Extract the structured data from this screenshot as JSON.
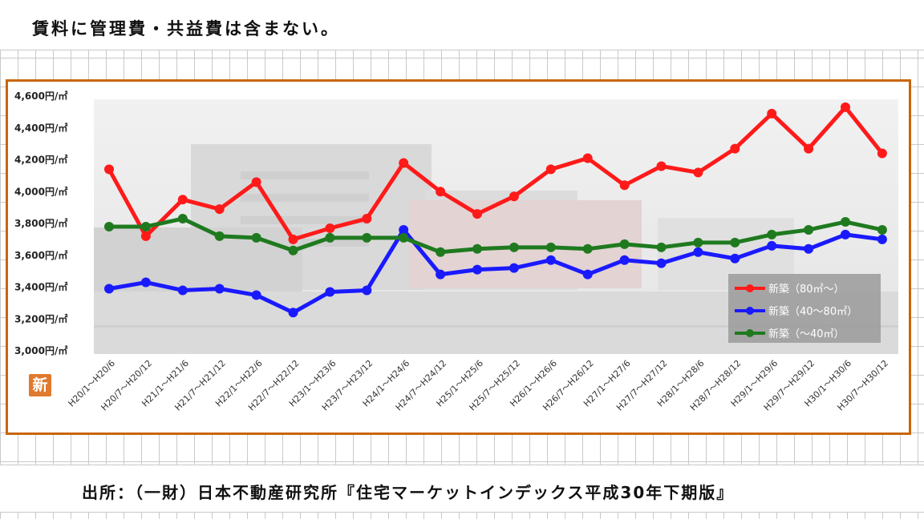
{
  "note": "賃料に管理費・共益費は含まない。",
  "source": "出所：（一財）日本不動産研究所『住宅マーケットインデックス平成30年下期版』",
  "badge": "新",
  "chart_data": {
    "type": "line",
    "categories": [
      "H20/1～H20/6",
      "H20/7～H20/12",
      "H21/1～H21/6",
      "H21/7～H21/12",
      "H22/1～H22/6",
      "H22/7～H22/12",
      "H23/1～H23/6",
      "H23/7～H23/12",
      "H24/1～H24/6",
      "H24/7～H24/12",
      "H25/1～H25/6",
      "H25/7～H25/12",
      "H26/1～H26/6",
      "H26/7～H26/12",
      "H27/1～H27/6",
      "H27/7～H27/12",
      "H28/1～H28/6",
      "H28/7～H28/12",
      "H29/1～H29/6",
      "H29/7～H29/12",
      "H30/1～H30/6",
      "H30/7～H30/12"
    ],
    "series": [
      {
        "name": "新築（80㎡～）",
        "color": "#ff1a1a",
        "values": [
          4140,
          3720,
          3950,
          3890,
          4060,
          3700,
          3770,
          3830,
          4180,
          4000,
          3860,
          3970,
          4140,
          4210,
          4040,
          4160,
          4120,
          4270,
          4490,
          4270,
          4530,
          4240
        ]
      },
      {
        "name": "新築（40～80㎡）",
        "color": "#1a1aff",
        "values": [
          3390,
          3430,
          3380,
          3390,
          3350,
          3240,
          3370,
          3380,
          3760,
          3480,
          3510,
          3520,
          3570,
          3480,
          3570,
          3550,
          3620,
          3580,
          3660,
          3640,
          3730,
          3700
        ]
      },
      {
        "name": "新築（～40㎡）",
        "color": "#1f7a1f",
        "values": [
          3780,
          3780,
          3830,
          3720,
          3710,
          3630,
          3710,
          3710,
          3710,
          3620,
          3640,
          3650,
          3650,
          3640,
          3670,
          3650,
          3680,
          3680,
          3730,
          3760,
          3810,
          3760
        ]
      }
    ],
    "yticks": [
      "4,600円/㎡",
      "4,400円/㎡",
      "4,200円/㎡",
      "4,000円/㎡",
      "3,800円/㎡",
      "3,600円/㎡",
      "3,400円/㎡",
      "3,200円/㎡",
      "3,000円/㎡"
    ],
    "ylim": [
      3000,
      4600
    ],
    "grid": false,
    "legend": "bottom-right"
  }
}
